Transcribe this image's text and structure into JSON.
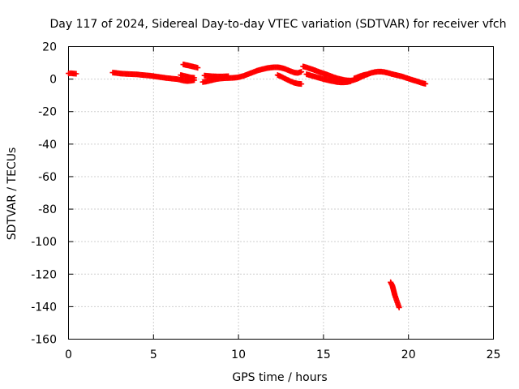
{
  "chart_data": {
    "type": "scatter",
    "title": "Day 117 of 2024, Sidereal Day-to-day VTEC variation (SDTVAR) for receiver vfch",
    "xlabel": "GPS time / hours",
    "ylabel": "SDTVAR / TECUs",
    "xlim": [
      0,
      25
    ],
    "ylim": [
      -160,
      20
    ],
    "xticks": [
      0,
      5,
      10,
      15,
      20,
      25
    ],
    "yticks": [
      20,
      0,
      -20,
      -40,
      -60,
      -80,
      -100,
      -120,
      -140,
      -160
    ],
    "grid": true,
    "marker": "+",
    "color": "#ff0000",
    "series": [
      {
        "name": "SDTVAR",
        "segments": [
          [
            [
              0.0,
              3.5
            ],
            [
              0.15,
              3.6
            ],
            [
              0.3,
              3.4
            ],
            [
              0.45,
              3.3
            ]
          ],
          [
            [
              2.6,
              4.0
            ],
            [
              2.8,
              3.8
            ],
            [
              3.0,
              3.5
            ],
            [
              3.2,
              3.3
            ],
            [
              3.4,
              3.2
            ],
            [
              3.6,
              3.1
            ],
            [
              3.8,
              3.0
            ],
            [
              4.0,
              2.9
            ],
            [
              4.2,
              2.7
            ],
            [
              4.4,
              2.5
            ],
            [
              4.6,
              2.3
            ],
            [
              4.8,
              2.1
            ],
            [
              5.0,
              1.8
            ],
            [
              5.2,
              1.5
            ],
            [
              5.4,
              1.2
            ],
            [
              5.6,
              0.9
            ],
            [
              5.8,
              0.6
            ],
            [
              6.0,
              0.4
            ],
            [
              6.2,
              0.2
            ],
            [
              6.4,
              0.0
            ],
            [
              6.6,
              -0.5
            ],
            [
              6.8,
              -1.0
            ],
            [
              7.0,
              -1.2
            ],
            [
              7.2,
              -1.0
            ],
            [
              7.4,
              -0.6
            ]
          ],
          [
            [
              6.6,
              2.5
            ],
            [
              6.8,
              2.0
            ],
            [
              7.0,
              1.5
            ],
            [
              7.2,
              1.0
            ],
            [
              7.4,
              0.8
            ]
          ],
          [
            [
              6.75,
              9.0
            ],
            [
              7.0,
              8.5
            ],
            [
              7.2,
              8.0
            ],
            [
              7.4,
              7.5
            ],
            [
              7.6,
              7.0
            ]
          ],
          [
            [
              7.9,
              -1.8
            ],
            [
              8.1,
              -1.5
            ],
            [
              8.3,
              -1.0
            ],
            [
              8.5,
              -0.5
            ],
            [
              8.7,
              0.0
            ],
            [
              8.9,
              0.3
            ],
            [
              9.1,
              0.5
            ],
            [
              9.3,
              0.6
            ],
            [
              9.5,
              0.7
            ],
            [
              9.7,
              0.8
            ],
            [
              9.9,
              1.0
            ],
            [
              10.1,
              1.4
            ],
            [
              10.3,
              2.0
            ],
            [
              10.5,
              2.8
            ],
            [
              10.7,
              3.6
            ],
            [
              10.9,
              4.4
            ],
            [
              11.1,
              5.2
            ],
            [
              11.3,
              5.8
            ],
            [
              11.5,
              6.3
            ],
            [
              11.7,
              6.8
            ],
            [
              11.9,
              7.1
            ],
            [
              12.1,
              7.3
            ],
            [
              12.3,
              7.3
            ],
            [
              12.5,
              7.0
            ],
            [
              12.7,
              6.4
            ],
            [
              12.9,
              5.6
            ],
            [
              13.1,
              4.7
            ],
            [
              13.3,
              4.0
            ],
            [
              13.5,
              3.8
            ],
            [
              13.7,
              4.5
            ]
          ],
          [
            [
              8.0,
              2.2
            ],
            [
              8.2,
              2.0
            ],
            [
              8.4,
              1.8
            ],
            [
              8.6,
              1.7
            ],
            [
              8.8,
              1.6
            ],
            [
              9.0,
              1.6
            ],
            [
              9.2,
              1.7
            ],
            [
              9.4,
              1.8
            ]
          ],
          [
            [
              12.3,
              2.5
            ],
            [
              12.5,
              1.6
            ],
            [
              12.7,
              0.5
            ],
            [
              12.9,
              -0.5
            ],
            [
              13.1,
              -1.5
            ],
            [
              13.3,
              -2.3
            ],
            [
              13.5,
              -2.8
            ],
            [
              13.7,
              -3.0
            ]
          ],
          [
            [
              13.8,
              7.8
            ],
            [
              14.0,
              7.2
            ],
            [
              14.2,
              6.5
            ],
            [
              14.4,
              5.8
            ],
            [
              14.6,
              5.0
            ],
            [
              14.8,
              4.2
            ],
            [
              15.0,
              3.5
            ],
            [
              15.2,
              2.8
            ],
            [
              15.4,
              2.0
            ],
            [
              15.6,
              1.2
            ],
            [
              15.8,
              0.5
            ],
            [
              16.0,
              0.0
            ],
            [
              16.2,
              -0.5
            ],
            [
              16.4,
              -0.8
            ],
            [
              16.6,
              -0.9
            ]
          ],
          [
            [
              14.0,
              3.0
            ],
            [
              14.2,
              2.4
            ],
            [
              14.4,
              1.8
            ],
            [
              14.6,
              1.2
            ],
            [
              14.8,
              0.6
            ],
            [
              15.0,
              0.0
            ],
            [
              15.2,
              -0.5
            ],
            [
              15.4,
              -1.0
            ],
            [
              15.6,
              -1.4
            ],
            [
              15.8,
              -1.8
            ],
            [
              16.0,
              -2.0
            ],
            [
              16.2,
              -2.0
            ],
            [
              16.4,
              -1.8
            ],
            [
              16.6,
              -1.4
            ]
          ],
          [
            [
              16.6,
              -1.0
            ],
            [
              16.8,
              -0.5
            ],
            [
              17.0,
              0.2
            ],
            [
              17.2,
              1.2
            ],
            [
              17.4,
              2.2
            ],
            [
              17.6,
              3.0
            ],
            [
              17.8,
              3.8
            ],
            [
              18.0,
              4.3
            ],
            [
              18.2,
              4.6
            ],
            [
              18.4,
              4.6
            ],
            [
              18.6,
              4.3
            ],
            [
              18.8,
              3.8
            ],
            [
              19.0,
              3.2
            ],
            [
              19.2,
              2.7
            ],
            [
              19.4,
              2.2
            ],
            [
              19.6,
              1.7
            ],
            [
              19.8,
              1.0
            ],
            [
              20.0,
              0.3
            ],
            [
              20.2,
              -0.4
            ],
            [
              20.4,
              -1.0
            ],
            [
              20.6,
              -1.7
            ],
            [
              20.8,
              -2.4
            ],
            [
              21.0,
              -2.9
            ]
          ],
          [
            [
              16.8,
              0.4
            ],
            [
              17.0,
              1.2
            ],
            [
              17.2,
              2.0
            ],
            [
              17.4,
              2.6
            ],
            [
              17.6,
              3.0
            ]
          ],
          [
            [
              18.95,
              -125
            ],
            [
              19.05,
              -127
            ],
            [
              19.1,
              -129
            ],
            [
              19.15,
              -131
            ],
            [
              19.2,
              -133
            ],
            [
              19.25,
              -134.5
            ],
            [
              19.3,
              -136
            ],
            [
              19.35,
              -137.5
            ],
            [
              19.4,
              -139
            ],
            [
              19.45,
              -140.5
            ]
          ]
        ]
      }
    ]
  }
}
